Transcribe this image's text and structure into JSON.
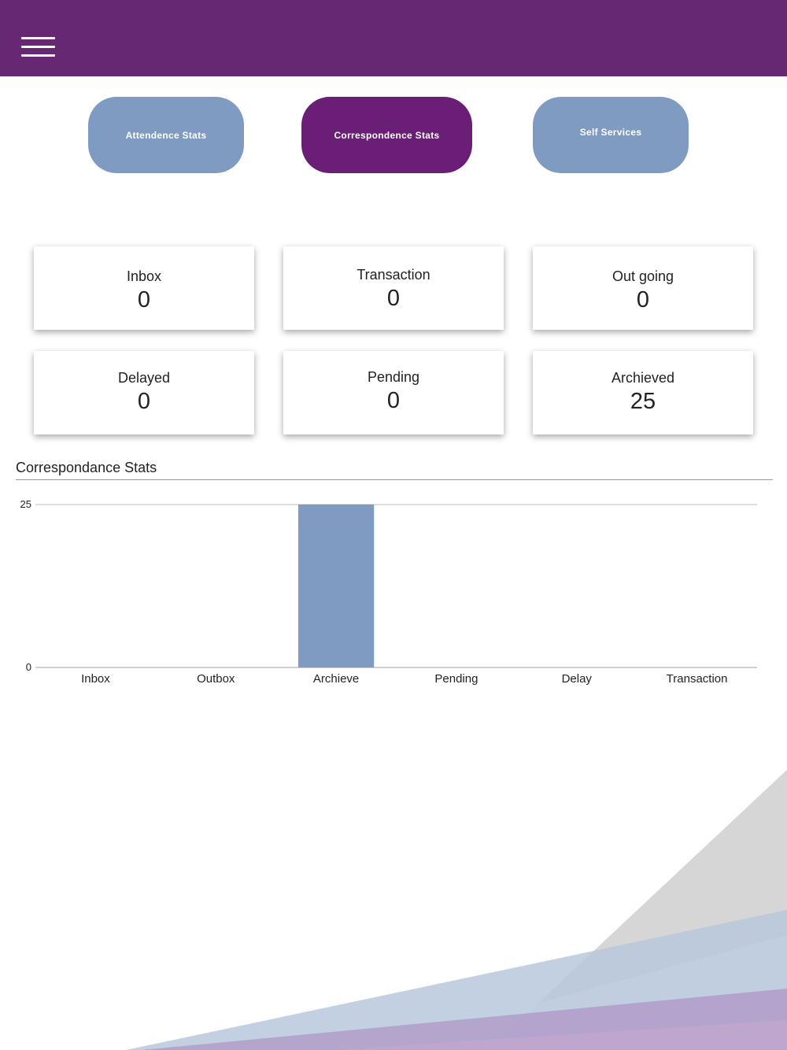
{
  "header": {
    "menu_icon": "hamburger-menu-icon",
    "color": "#662773"
  },
  "tabs": [
    {
      "label": "Attendence Stats",
      "active": false
    },
    {
      "label": "Correspondence Stats",
      "active": true
    },
    {
      "label": "Self Services",
      "active": false
    }
  ],
  "stats": [
    {
      "label": "Inbox",
      "value": "0"
    },
    {
      "label": "Transaction",
      "value": "0"
    },
    {
      "label": "Out going",
      "value": "0"
    },
    {
      "label": "Delayed",
      "value": "0"
    },
    {
      "label": "Pending",
      "value": "0"
    },
    {
      "label": "Archieved",
      "value": "25"
    }
  ],
  "section": {
    "title": "Correspondance Stats"
  },
  "colors": {
    "accent": "#662773",
    "inactive_tab": "#7f9bc2",
    "bar": "#7f9bc2"
  },
  "chart_data": {
    "type": "bar",
    "categories": [
      "Inbox",
      "Outbox",
      "Archieve",
      "Pending",
      "Delay",
      "Transaction"
    ],
    "values": [
      0,
      0,
      25,
      0,
      0,
      0
    ],
    "ylim": [
      0,
      25
    ],
    "yticks": [
      0,
      25
    ],
    "grid": true,
    "bar_color": "#7f9bc2"
  }
}
